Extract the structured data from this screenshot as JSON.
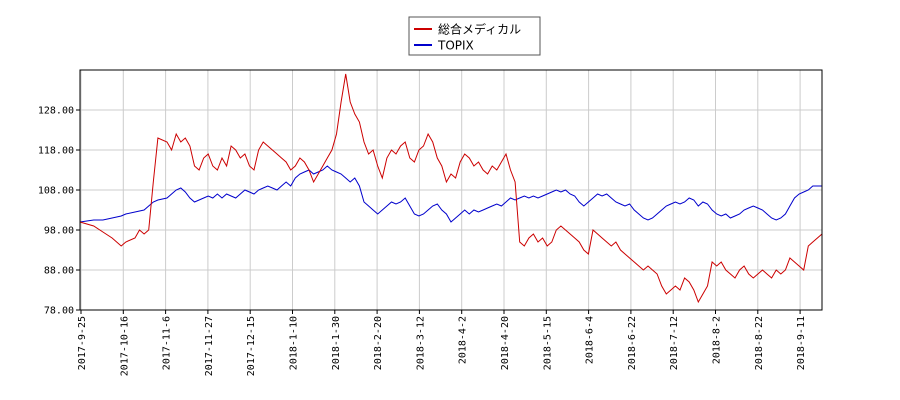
{
  "chart_data": {
    "type": "line",
    "title": "",
    "xlabel": "",
    "ylabel": "",
    "ylim": [
      78.0,
      138.0
    ],
    "yticks": [
      "78.00",
      "88.00",
      "98.00",
      "108.00",
      "118.00",
      "128.00"
    ],
    "grid": true,
    "legend_position": "top-center",
    "xtick_labels": [
      "2017-9-25",
      "2017-10-16",
      "2017-11-6",
      "2017-11-27",
      "2017-12-15",
      "2018-1-10",
      "2018-1-30",
      "2018-2-20",
      "2018-3-12",
      "2018-4-2",
      "2018-4-20",
      "2018-5-15",
      "2018-6-4",
      "2018-6-22",
      "2018-7-12",
      "2018-8-2",
      "2018-8-22",
      "2018-9-11"
    ],
    "series": [
      {
        "name": "総合メディカル",
        "color": "#cc0000",
        "points": [
          [
            0,
            100
          ],
          [
            3,
            99
          ],
          [
            5,
            97.5
          ],
          [
            7,
            96
          ],
          [
            9,
            94
          ],
          [
            10,
            95
          ],
          [
            12,
            96
          ],
          [
            13,
            98
          ],
          [
            14,
            97
          ],
          [
            15,
            98
          ],
          [
            16,
            110
          ],
          [
            17,
            121
          ],
          [
            19,
            120
          ],
          [
            20,
            118
          ],
          [
            21,
            122
          ],
          [
            22,
            120
          ],
          [
            23,
            121
          ],
          [
            24,
            119
          ],
          [
            25,
            114
          ],
          [
            26,
            113
          ],
          [
            27,
            116
          ],
          [
            28,
            117
          ],
          [
            29,
            114
          ],
          [
            30,
            113
          ],
          [
            31,
            116
          ],
          [
            32,
            114
          ],
          [
            33,
            119
          ],
          [
            34,
            118
          ],
          [
            35,
            116
          ],
          [
            36,
            117
          ],
          [
            37,
            114
          ],
          [
            38,
            113
          ],
          [
            39,
            118
          ],
          [
            40,
            120
          ],
          [
            41,
            119
          ],
          [
            42,
            118
          ],
          [
            43,
            117
          ],
          [
            44,
            116
          ],
          [
            45,
            115
          ],
          [
            46,
            113
          ],
          [
            47,
            114
          ],
          [
            48,
            116
          ],
          [
            49,
            115
          ],
          [
            50,
            113
          ],
          [
            51,
            110
          ],
          [
            52,
            112
          ],
          [
            53,
            114
          ],
          [
            54,
            116
          ],
          [
            55,
            118
          ],
          [
            56,
            122
          ],
          [
            57,
            130
          ],
          [
            58,
            137
          ],
          [
            59,
            130
          ],
          [
            60,
            127
          ],
          [
            61,
            125
          ],
          [
            62,
            120
          ],
          [
            63,
            117
          ],
          [
            64,
            118
          ],
          [
            65,
            114
          ],
          [
            66,
            111
          ],
          [
            67,
            116
          ],
          [
            68,
            118
          ],
          [
            69,
            117
          ],
          [
            70,
            119
          ],
          [
            71,
            120
          ],
          [
            72,
            116
          ],
          [
            73,
            115
          ],
          [
            74,
            118
          ],
          [
            75,
            119
          ],
          [
            76,
            122
          ],
          [
            77,
            120
          ],
          [
            78,
            116
          ],
          [
            79,
            114
          ],
          [
            80,
            110
          ],
          [
            81,
            112
          ],
          [
            82,
            111
          ],
          [
            83,
            115
          ],
          [
            84,
            117
          ],
          [
            85,
            116
          ],
          [
            86,
            114
          ],
          [
            87,
            115
          ],
          [
            88,
            113
          ],
          [
            89,
            112
          ],
          [
            90,
            114
          ],
          [
            91,
            113
          ],
          [
            92,
            115
          ],
          [
            93,
            117
          ],
          [
            94,
            113
          ],
          [
            95,
            110
          ],
          [
            96,
            95
          ],
          [
            97,
            94
          ],
          [
            98,
            96
          ],
          [
            99,
            97
          ],
          [
            100,
            95
          ],
          [
            101,
            96
          ],
          [
            102,
            94
          ],
          [
            103,
            95
          ],
          [
            104,
            98
          ],
          [
            105,
            99
          ],
          [
            106,
            98
          ],
          [
            107,
            97
          ],
          [
            108,
            96
          ],
          [
            109,
            95
          ],
          [
            110,
            93
          ],
          [
            111,
            92
          ],
          [
            112,
            98
          ],
          [
            113,
            97
          ],
          [
            114,
            96
          ],
          [
            115,
            95
          ],
          [
            116,
            94
          ],
          [
            117,
            95
          ],
          [
            118,
            93
          ],
          [
            119,
            92
          ],
          [
            120,
            91
          ],
          [
            121,
            90
          ],
          [
            122,
            89
          ],
          [
            123,
            88
          ],
          [
            124,
            89
          ],
          [
            125,
            88
          ],
          [
            126,
            87
          ],
          [
            127,
            84
          ],
          [
            128,
            82
          ],
          [
            129,
            83
          ],
          [
            130,
            84
          ],
          [
            131,
            83
          ],
          [
            132,
            86
          ],
          [
            133,
            85
          ],
          [
            134,
            83
          ],
          [
            135,
            80
          ],
          [
            136,
            82
          ],
          [
            137,
            84
          ],
          [
            138,
            90
          ],
          [
            139,
            89
          ],
          [
            140,
            90
          ],
          [
            141,
            88
          ],
          [
            142,
            87
          ],
          [
            143,
            86
          ],
          [
            144,
            88
          ],
          [
            145,
            89
          ],
          [
            146,
            87
          ],
          [
            147,
            86
          ],
          [
            148,
            87
          ],
          [
            149,
            88
          ],
          [
            150,
            87
          ],
          [
            151,
            86
          ],
          [
            152,
            88
          ],
          [
            153,
            87
          ],
          [
            154,
            88
          ],
          [
            155,
            91
          ],
          [
            156,
            90
          ],
          [
            157,
            89
          ],
          [
            158,
            88
          ],
          [
            159,
            94
          ],
          [
            160,
            95
          ],
          [
            161,
            96
          ],
          [
            162,
            97
          ]
        ]
      },
      {
        "name": "TOPIX",
        "color": "#0000cc",
        "points": [
          [
            0,
            100
          ],
          [
            3,
            100.5
          ],
          [
            5,
            100.5
          ],
          [
            7,
            101
          ],
          [
            9,
            101.5
          ],
          [
            10,
            102
          ],
          [
            12,
            102.5
          ],
          [
            14,
            103
          ],
          [
            15,
            104
          ],
          [
            16,
            105
          ],
          [
            17,
            105.5
          ],
          [
            19,
            106
          ],
          [
            20,
            107
          ],
          [
            21,
            108
          ],
          [
            22,
            108.5
          ],
          [
            23,
            107.5
          ],
          [
            24,
            106
          ],
          [
            25,
            105
          ],
          [
            26,
            105.5
          ],
          [
            27,
            106
          ],
          [
            28,
            106.5
          ],
          [
            29,
            106
          ],
          [
            30,
            107
          ],
          [
            31,
            106
          ],
          [
            32,
            107
          ],
          [
            33,
            106.5
          ],
          [
            34,
            106
          ],
          [
            35,
            107
          ],
          [
            36,
            108
          ],
          [
            37,
            107.5
          ],
          [
            38,
            107
          ],
          [
            39,
            108
          ],
          [
            40,
            108.5
          ],
          [
            41,
            109
          ],
          [
            42,
            108.5
          ],
          [
            43,
            108
          ],
          [
            44,
            109
          ],
          [
            45,
            110
          ],
          [
            46,
            109
          ],
          [
            47,
            111
          ],
          [
            48,
            112
          ],
          [
            49,
            112.5
          ],
          [
            50,
            113
          ],
          [
            51,
            112
          ],
          [
            52,
            112.5
          ],
          [
            53,
            113
          ],
          [
            54,
            114
          ],
          [
            55,
            113
          ],
          [
            56,
            112.5
          ],
          [
            57,
            112
          ],
          [
            58,
            111
          ],
          [
            59,
            110
          ],
          [
            60,
            111
          ],
          [
            61,
            109
          ],
          [
            62,
            105
          ],
          [
            63,
            104
          ],
          [
            64,
            103
          ],
          [
            65,
            102
          ],
          [
            66,
            103
          ],
          [
            67,
            104
          ],
          [
            68,
            105
          ],
          [
            69,
            104.5
          ],
          [
            70,
            105
          ],
          [
            71,
            106
          ],
          [
            72,
            104
          ],
          [
            73,
            102
          ],
          [
            74,
            101.5
          ],
          [
            75,
            102
          ],
          [
            76,
            103
          ],
          [
            77,
            104
          ],
          [
            78,
            104.5
          ],
          [
            79,
            103
          ],
          [
            80,
            102
          ],
          [
            81,
            100
          ],
          [
            82,
            101
          ],
          [
            83,
            102
          ],
          [
            84,
            103
          ],
          [
            85,
            102
          ],
          [
            86,
            103
          ],
          [
            87,
            102.5
          ],
          [
            88,
            103
          ],
          [
            89,
            103.5
          ],
          [
            90,
            104
          ],
          [
            91,
            104.5
          ],
          [
            92,
            104
          ],
          [
            93,
            105
          ],
          [
            94,
            106
          ],
          [
            95,
            105.5
          ],
          [
            96,
            106
          ],
          [
            97,
            106.5
          ],
          [
            98,
            106
          ],
          [
            99,
            106.5
          ],
          [
            100,
            106
          ],
          [
            101,
            106.5
          ],
          [
            102,
            107
          ],
          [
            103,
            107.5
          ],
          [
            104,
            108
          ],
          [
            105,
            107.5
          ],
          [
            106,
            108
          ],
          [
            107,
            107
          ],
          [
            108,
            106.5
          ],
          [
            109,
            105
          ],
          [
            110,
            104
          ],
          [
            111,
            105
          ],
          [
            112,
            106
          ],
          [
            113,
            107
          ],
          [
            114,
            106.5
          ],
          [
            115,
            107
          ],
          [
            116,
            106
          ],
          [
            117,
            105
          ],
          [
            118,
            104.5
          ],
          [
            119,
            104
          ],
          [
            120,
            104.5
          ],
          [
            121,
            103
          ],
          [
            122,
            102
          ],
          [
            123,
            101
          ],
          [
            124,
            100.5
          ],
          [
            125,
            101
          ],
          [
            126,
            102
          ],
          [
            127,
            103
          ],
          [
            128,
            104
          ],
          [
            129,
            104.5
          ],
          [
            130,
            105
          ],
          [
            131,
            104.5
          ],
          [
            132,
            105
          ],
          [
            133,
            106
          ],
          [
            134,
            105.5
          ],
          [
            135,
            104
          ],
          [
            136,
            105
          ],
          [
            137,
            104.5
          ],
          [
            138,
            103
          ],
          [
            139,
            102
          ],
          [
            140,
            101.5
          ],
          [
            141,
            102
          ],
          [
            142,
            101
          ],
          [
            143,
            101.5
          ],
          [
            144,
            102
          ],
          [
            145,
            103
          ],
          [
            146,
            103.5
          ],
          [
            147,
            104
          ],
          [
            148,
            103.5
          ],
          [
            149,
            103
          ],
          [
            150,
            102
          ],
          [
            151,
            101
          ],
          [
            152,
            100.5
          ],
          [
            153,
            101
          ],
          [
            154,
            102
          ],
          [
            155,
            104
          ],
          [
            156,
            106
          ],
          [
            157,
            107
          ],
          [
            158,
            107.5
          ],
          [
            159,
            108
          ],
          [
            160,
            109
          ],
          [
            161,
            109
          ],
          [
            162,
            109
          ]
        ]
      }
    ]
  }
}
